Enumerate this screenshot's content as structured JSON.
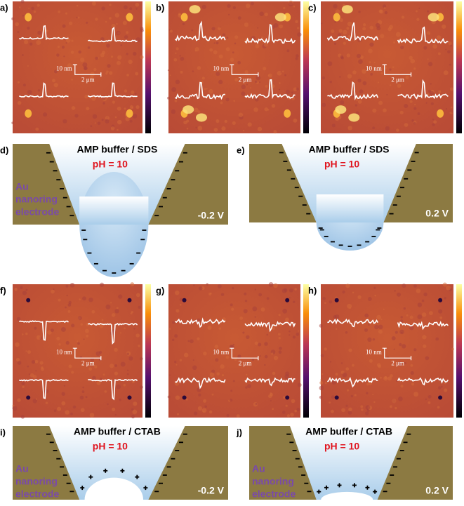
{
  "afm_panels": [
    {
      "label": "a)",
      "scale_z": "10 nm",
      "scale_x": "2 μm"
    },
    {
      "label": "b)",
      "scale_z": "10 nm",
      "scale_x": "2 μm"
    },
    {
      "label": "c)",
      "scale_z": "10 nm",
      "scale_x": "2 μm"
    },
    {
      "label": "f)",
      "scale_z": "10 nm",
      "scale_x": "2 μm"
    },
    {
      "label": "g)",
      "scale_z": "10 nm",
      "scale_x": "2 μm"
    },
    {
      "label": "h)",
      "scale_z": "10 nm",
      "scale_x": "2 μm"
    }
  ],
  "schematics": [
    {
      "label": "d)",
      "title": "AMP buffer / SDS",
      "ph": "pH = 10",
      "electrode": [
        "Au",
        "nanoring",
        "electrode"
      ],
      "potential": "-0.2 V"
    },
    {
      "label": "e)",
      "title": "AMP buffer / SDS",
      "ph": "pH = 10",
      "electrode": [],
      "potential": "0.2 V"
    },
    {
      "label": "i)",
      "title": "AMP buffer / CTAB",
      "ph": "pH = 10",
      "electrode": [
        "Au",
        "nanoring",
        "electrode"
      ],
      "potential": "-0.2 V"
    },
    {
      "label": "j)",
      "title": "AMP buffer / CTAB",
      "ph": "pH = 10",
      "electrode": [
        "Au",
        "nanoring",
        "electrode"
      ],
      "potential": "0.2 V"
    }
  ]
}
